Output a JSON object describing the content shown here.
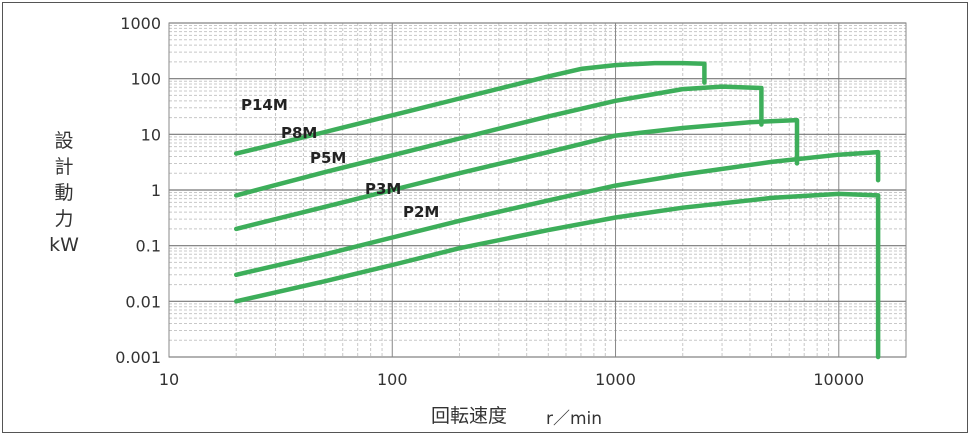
{
  "chart_data": {
    "type": "line",
    "xscale": "log",
    "yscale": "log",
    "xlim": [
      10,
      20000
    ],
    "ylim": [
      0.001,
      1000
    ],
    "x_ticks": [
      "10",
      "100",
      "1000",
      "10000"
    ],
    "y_ticks": [
      "1000",
      "100",
      "10",
      "1",
      "0.1",
      "0.01",
      "0.001"
    ],
    "ylabel_lines": [
      "設",
      "計",
      "動",
      "力",
      "kW"
    ],
    "xlabel_main": "回転速度",
    "xlabel_unit": "r／min",
    "grid": true,
    "line_color": "#3dae5a",
    "series": [
      {
        "name": "P14M",
        "x": [
          20,
          50,
          100,
          200,
          500,
          700,
          1000,
          1500,
          2000,
          2500,
          2500
        ],
        "y": [
          4.5,
          11,
          22,
          44,
          110,
          150,
          175,
          190,
          190,
          185,
          85
        ]
      },
      {
        "name": "P8M",
        "x": [
          20,
          50,
          100,
          200,
          500,
          1000,
          2000,
          3000,
          4500,
          4500
        ],
        "y": [
          0.8,
          2.1,
          4.2,
          8.4,
          21,
          40,
          65,
          72,
          68,
          15
        ]
      },
      {
        "name": "P5M",
        "x": [
          20,
          50,
          100,
          200,
          500,
          1000,
          2000,
          4000,
          6500,
          6500
        ],
        "y": [
          0.2,
          0.5,
          1.0,
          2.0,
          4.8,
          9.5,
          13,
          16.5,
          18,
          3
        ]
      },
      {
        "name": "P3M",
        "x": [
          20,
          50,
          100,
          200,
          500,
          1000,
          2000,
          5000,
          10000,
          15000,
          15000
        ],
        "y": [
          0.03,
          0.07,
          0.14,
          0.28,
          0.65,
          1.2,
          1.9,
          3.2,
          4.3,
          4.8,
          1.5
        ]
      },
      {
        "name": "P2M",
        "x": [
          20,
          50,
          100,
          200,
          500,
          1000,
          2000,
          5000,
          10000,
          15000,
          15000
        ],
        "y": [
          0.01,
          0.023,
          0.045,
          0.09,
          0.19,
          0.32,
          0.48,
          0.72,
          0.85,
          0.8,
          0.001
        ]
      }
    ]
  }
}
